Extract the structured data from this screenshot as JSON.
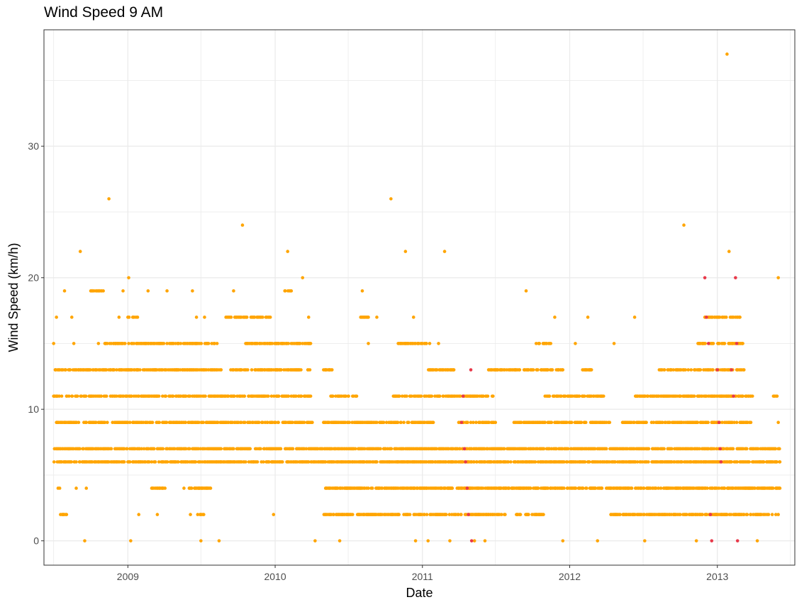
{
  "chart_data": {
    "type": "scatter",
    "title": "Wind Speed 9 AM",
    "xlabel": "Date",
    "ylabel": "Wind Speed (km/h)",
    "x_ticks": [
      "2009",
      "2010",
      "2011",
      "2012",
      "2013"
    ],
    "y_ticks": [
      0,
      10,
      20,
      30
    ],
    "xlim": [
      "2008-06-07",
      "2013-07-12"
    ],
    "ylim": [
      -1.85,
      38.85
    ],
    "grid": true,
    "legend": "none",
    "colors": {
      "main": "#FFA500",
      "highlight": "#E8394A",
      "grid": "#EBEBEB",
      "axis": "#333333",
      "tick_text": "#4D4D4D"
    },
    "series": [
      {
        "color": "#FFA500",
        "points": [
          [
            "2008-07-01",
            15
          ],
          [
            "2008-07-03",
            11
          ],
          [
            "2008-07-05",
            13
          ],
          [
            "2008-07-08",
            17
          ],
          [
            "2008-07-12",
            4
          ],
          [
            "2008-07-18",
            2
          ],
          [
            "2008-07-28",
            19
          ],
          [
            "2008-08-15",
            17
          ],
          [
            "2008-08-20",
            15
          ],
          [
            "2008-08-26",
            4
          ],
          [
            "2008-09-05",
            22
          ],
          [
            "2008-09-16",
            0
          ],
          [
            "2008-09-20",
            4
          ],
          [
            "2008-10-05",
            19
          ],
          [
            "2008-10-20",
            15
          ],
          [
            "2008-11-01",
            19
          ],
          [
            "2008-11-15",
            26
          ],
          [
            "2008-11-20",
            13
          ],
          [
            "2008-12-10",
            17
          ],
          [
            "2008-12-20",
            19
          ],
          [
            "2009-01-03",
            20
          ],
          [
            "2009-01-08",
            0
          ],
          [
            "2009-01-15",
            17
          ],
          [
            "2009-01-28",
            2
          ],
          [
            "2009-02-20",
            19
          ],
          [
            "2009-03-15",
            2
          ],
          [
            "2009-04-08",
            19
          ],
          [
            "2009-05-20",
            4
          ],
          [
            "2009-06-05",
            2
          ],
          [
            "2009-06-10",
            19
          ],
          [
            "2009-06-20",
            17
          ],
          [
            "2009-07-01",
            0
          ],
          [
            "2009-07-10",
            17
          ],
          [
            "2009-08-15",
            0
          ],
          [
            "2009-09-20",
            19
          ],
          [
            "2009-10-12",
            24
          ],
          [
            "2009-10-25",
            13
          ],
          [
            "2009-11-10",
            17
          ],
          [
            "2009-12-28",
            2
          ],
          [
            "2010-01-10",
            15
          ],
          [
            "2010-02-01",
            22
          ],
          [
            "2010-02-10",
            19
          ],
          [
            "2010-03-10",
            20
          ],
          [
            "2010-03-25",
            17
          ],
          [
            "2010-04-10",
            0
          ],
          [
            "2010-05-15",
            13
          ],
          [
            "2010-06-10",
            0
          ],
          [
            "2010-07-01",
            4
          ],
          [
            "2010-08-05",
            19
          ],
          [
            "2010-08-20",
            15
          ],
          [
            "2010-09-10",
            17
          ],
          [
            "2010-10-15",
            26
          ],
          [
            "2010-10-25",
            11
          ],
          [
            "2010-11-20",
            22
          ],
          [
            "2010-12-10",
            17
          ],
          [
            "2010-12-15",
            0
          ],
          [
            "2011-01-15",
            0
          ],
          [
            "2011-02-10",
            15
          ],
          [
            "2011-02-25",
            22
          ],
          [
            "2011-03-10",
            0
          ],
          [
            "2011-05-10",
            0
          ],
          [
            "2011-06-05",
            0
          ],
          [
            "2011-09-15",
            19
          ],
          [
            "2011-10-10",
            15
          ],
          [
            "2011-11-25",
            17
          ],
          [
            "2011-12-15",
            0
          ],
          [
            "2012-01-15",
            15
          ],
          [
            "2012-02-15",
            17
          ],
          [
            "2012-03-10",
            0
          ],
          [
            "2012-04-20",
            15
          ],
          [
            "2012-06-10",
            17
          ],
          [
            "2012-07-05",
            0
          ],
          [
            "2012-08-15",
            13
          ],
          [
            "2012-10-10",
            24
          ],
          [
            "2012-11-10",
            0
          ],
          [
            "2013-01-25",
            37
          ],
          [
            "2013-01-30",
            22
          ],
          [
            "2013-02-20",
            17
          ],
          [
            "2013-04-10",
            0
          ],
          [
            "2013-06-01",
            20
          ],
          [
            "2013-06-01",
            9
          ],
          [
            "2013-06-05",
            4
          ],
          [
            "2013-05-20",
            11
          ],
          [
            "2013-05-25",
            7
          ],
          [
            "2013-05-28",
            6
          ]
        ]
      },
      {
        "color": "#E8394A",
        "points": [
          [
            "2011-04-08",
            9
          ],
          [
            "2011-04-12",
            11
          ],
          [
            "2011-04-15",
            7
          ],
          [
            "2011-04-18",
            6
          ],
          [
            "2011-04-22",
            4
          ],
          [
            "2011-04-25",
            2
          ],
          [
            "2011-05-01",
            13
          ],
          [
            "2011-05-03",
            0
          ],
          [
            "2012-12-01",
            20
          ],
          [
            "2012-12-05",
            17
          ],
          [
            "2012-12-10",
            15
          ],
          [
            "2012-12-15",
            2
          ],
          [
            "2012-12-18",
            0
          ],
          [
            "2013-01-01",
            13
          ],
          [
            "2013-01-05",
            9
          ],
          [
            "2013-01-08",
            7
          ],
          [
            "2013-01-10",
            6
          ],
          [
            "2013-02-05",
            13
          ],
          [
            "2013-02-15",
            20
          ],
          [
            "2013-02-18",
            15
          ],
          [
            "2013-02-20",
            0
          ],
          [
            "2013-02-10",
            11
          ]
        ]
      }
    ],
    "band_y_values": [
      0,
      2,
      4,
      6,
      7,
      9,
      11,
      13,
      15,
      17,
      19
    ],
    "series_rows": [
      {
        "y": 15,
        "ranges": [
          [
            "2008-11-05",
            "2009-08-10"
          ],
          [
            "2009-10-20",
            "2010-03-30"
          ],
          [
            "2010-11-01",
            "2011-01-20"
          ],
          [
            "2011-10-15",
            "2011-11-15"
          ],
          [
            "2012-11-10",
            "2013-03-05"
          ]
        ]
      },
      {
        "y": 13,
        "ranges": [
          [
            "2008-07-05",
            "2009-08-20"
          ],
          [
            "2009-09-10",
            "2010-03-30"
          ],
          [
            "2010-05-01",
            "2010-05-25"
          ],
          [
            "2011-01-15",
            "2011-03-20"
          ],
          [
            "2011-06-10",
            "2011-12-15"
          ],
          [
            "2012-02-01",
            "2012-02-25"
          ],
          [
            "2012-08-10",
            "2013-03-10"
          ]
        ]
      },
      {
        "y": 11,
        "ranges": [
          [
            "2008-07-01",
            "2010-03-30"
          ],
          [
            "2010-05-15",
            "2010-07-25"
          ],
          [
            "2010-10-20",
            "2011-06-25"
          ],
          [
            "2011-11-01",
            "2012-03-25"
          ],
          [
            "2012-06-10",
            "2013-04-01"
          ],
          [
            "2013-05-20",
            "2013-05-30"
          ]
        ]
      },
      {
        "y": 9,
        "ranges": [
          [
            "2008-07-05",
            "2010-04-05"
          ],
          [
            "2010-05-01",
            "2011-01-30"
          ],
          [
            "2011-03-25",
            "2011-07-01"
          ],
          [
            "2011-08-15",
            "2012-04-10"
          ],
          [
            "2012-05-10",
            "2013-03-25"
          ]
        ]
      },
      {
        "y": 7,
        "ranges": [
          [
            "2008-07-01",
            "2013-06-05"
          ]
        ]
      },
      {
        "y": 6,
        "ranges": [
          [
            "2008-07-01",
            "2013-06-05"
          ]
        ]
      },
      {
        "y": 4,
        "ranges": [
          [
            "2008-07-15",
            "2008-07-20"
          ],
          [
            "2009-03-01",
            "2009-04-05"
          ],
          [
            "2009-06-01",
            "2009-07-25"
          ],
          [
            "2010-05-01",
            "2013-06-05"
          ]
        ]
      },
      {
        "y": 2,
        "ranges": [
          [
            "2008-07-18",
            "2008-08-05"
          ],
          [
            "2009-06-20",
            "2009-07-10"
          ],
          [
            "2010-05-01",
            "2011-07-25"
          ],
          [
            "2011-08-15",
            "2011-11-01"
          ],
          [
            "2012-04-10",
            "2013-06-01"
          ]
        ]
      },
      {
        "y": 17,
        "ranges": [
          [
            "2009-01-01",
            "2009-01-25"
          ],
          [
            "2009-09-01",
            "2009-12-20"
          ],
          [
            "2010-08-01",
            "2010-08-20"
          ],
          [
            "2012-12-01",
            "2013-02-28"
          ]
        ]
      },
      {
        "y": 19,
        "ranges": [
          [
            "2008-10-01",
            "2008-10-30"
          ],
          [
            "2010-01-25",
            "2010-02-10"
          ]
        ]
      }
    ]
  }
}
